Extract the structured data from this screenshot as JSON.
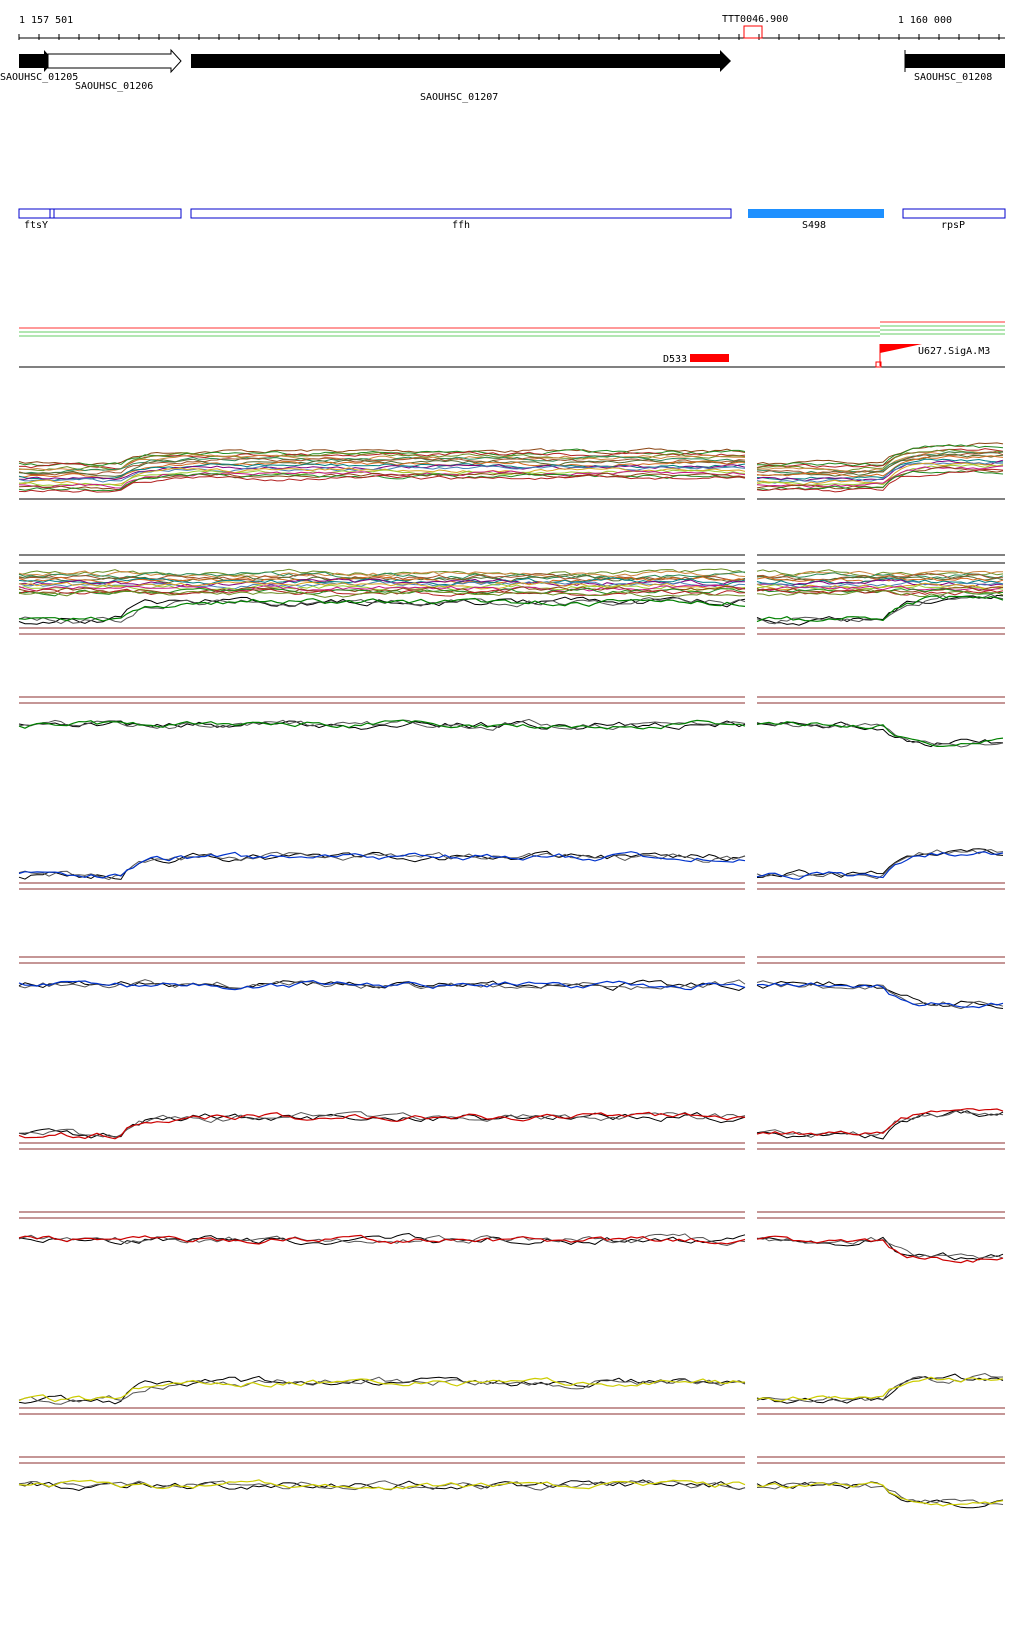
{
  "ruler": {
    "start_label": "1 157 501",
    "end_label": "1 160 000",
    "marker_label": "TTT0046.900"
  },
  "genes": [
    {
      "id": "g1205",
      "label": "SAOUHSC_01205"
    },
    {
      "id": "g1206",
      "label": "SAOUHSC_01206"
    },
    {
      "id": "g1207",
      "label": "SAOUHSC_01207"
    },
    {
      "id": "g1208",
      "label": "SAOUHSC_01208"
    }
  ],
  "annotations": [
    {
      "id": "ftsY",
      "label": "ftsY"
    },
    {
      "id": "ffh",
      "label": "ffh"
    },
    {
      "id": "S498",
      "label": "S498"
    },
    {
      "id": "rpsP",
      "label": "rpsP"
    }
  ],
  "features": [
    {
      "id": "D533",
      "label": "D533"
    },
    {
      "id": "U627",
      "label": "U627.SigA.M3"
    }
  ],
  "colors": {
    "gene_fill": "#000000",
    "annotation_stroke": "#0000cc",
    "highlight": "#1e90ff",
    "feature": "#ff0000",
    "track_green": "#008000",
    "track_blue": "#0033cc",
    "track_red": "#cc0000",
    "track_yellow": "#cccc00",
    "baseline": "#8b2e2e"
  },
  "tracks": [
    {
      "name": "multi-track-1",
      "color": "multi"
    },
    {
      "name": "multi-track-2",
      "color": "multi"
    },
    {
      "name": "green-track-1",
      "color": "green"
    },
    {
      "name": "green-track-2",
      "color": "green"
    },
    {
      "name": "blue-track-1",
      "color": "blue"
    },
    {
      "name": "blue-track-2",
      "color": "blue"
    },
    {
      "name": "red-track-1",
      "color": "red"
    },
    {
      "name": "red-track-2",
      "color": "red"
    },
    {
      "name": "yellow-track-1",
      "color": "yellow"
    },
    {
      "name": "yellow-track-2",
      "color": "yellow"
    }
  ]
}
